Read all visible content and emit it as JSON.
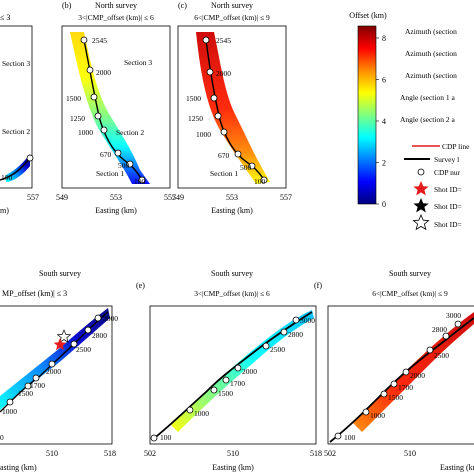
{
  "chart_data": [
    {
      "id": "a",
      "type": "scatter",
      "panel_label": "",
      "title": [
        "",
        "≤ 3"
      ],
      "xlabel": "m)",
      "x_ticks": [],
      "right_tick": "557",
      "section_labels": [
        "Section 3",
        "Section 2"
      ],
      "cdp_labels": [
        "100"
      ]
    },
    {
      "id": "b",
      "type": "scatter",
      "panel_label": "(b)",
      "title": [
        "North survey",
        "3<|CMP_offset (km)| ≤ 6"
      ],
      "xlabel": "Easting (km)",
      "x_ticks": [
        "549",
        "553",
        "557"
      ],
      "section_labels": [
        "Section 3",
        "Section 2",
        "Section 1"
      ],
      "cdp_labels": [
        "2545",
        "2000",
        "1500",
        "1250",
        "1000",
        "670",
        "500",
        "100"
      ]
    },
    {
      "id": "c",
      "type": "scatter",
      "panel_label": "(c)",
      "title": [
        "North survey",
        "6<|CMP_offset (km)| ≤ 9"
      ],
      "xlabel": "Easting (km)",
      "x_ticks": [
        "549",
        "553",
        "557"
      ],
      "section_labels": [
        "Section 1"
      ],
      "cdp_labels": [
        "2545",
        "2000",
        "1500",
        "1250",
        "1000",
        "670",
        "500",
        "100"
      ]
    },
    {
      "id": "d",
      "type": "scatter",
      "panel_label": "",
      "title": [
        "South survey",
        "MP_offset (km)| ≤ 3"
      ],
      "xlabel": "asting (km)",
      "x_ticks": [
        "510",
        "518"
      ],
      "cdp_labels": [
        "3000",
        "2800",
        "2500",
        "2000",
        "1700",
        "1500",
        "1000",
        "0"
      ]
    },
    {
      "id": "e",
      "type": "scatter",
      "panel_label": "(e)",
      "title": [
        "South survey",
        "3<|CMP_offset (km)| ≤ 6"
      ],
      "xlabel": "Easting (km)",
      "x_ticks": [
        "502",
        "510",
        "518"
      ],
      "cdp_labels": [
        "3000",
        "2800",
        "2500",
        "2000",
        "1700",
        "1500",
        "1000",
        "100"
      ]
    },
    {
      "id": "f",
      "type": "scatter",
      "panel_label": "(f)",
      "title": [
        "South survey",
        "6<|CMP_offset (km)| ≤ 9"
      ],
      "xlabel": "Easting (km",
      "x_ticks": [
        "502",
        "510"
      ],
      "cdp_labels": [
        "3000",
        "2800",
        "2500",
        "2000",
        "1700",
        "1500",
        "1000",
        "100"
      ]
    }
  ],
  "colorbar": {
    "label": "Offset (km)",
    "ticks": [
      "8",
      "6",
      "4",
      "2",
      "0"
    ],
    "colors": [
      "#7f0000",
      "#ff0000",
      "#ff8c00",
      "#ffff00",
      "#7fff7f",
      "#00ffff",
      "#0080ff",
      "#0000ff",
      "#00007f"
    ]
  },
  "legend_text": {
    "azimuth1": "Azimuth (section",
    "azimuth2": "Azimuth (section",
    "azimuth3": "Azimuth (section",
    "angle1": "Angle (section 1 a",
    "angle2": "Angle (section 2 a",
    "cdp_line": "CDP line",
    "survey_line": "Survey l",
    "cdp_num": "CDP nur",
    "shot1": "Shot ID=",
    "shot2": "Shot ID=",
    "shot3": "Shot ID="
  },
  "colors": {
    "track_line": "#000000",
    "cdp_line": "#e41a1c",
    "shot_red": "#e41a1c"
  }
}
